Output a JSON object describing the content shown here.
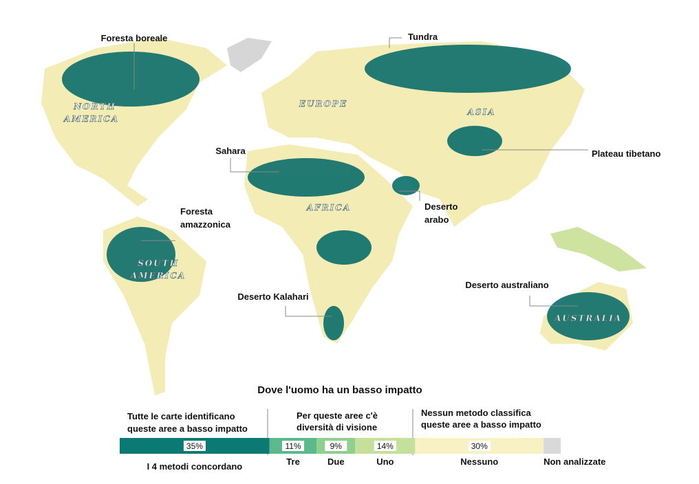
{
  "map": {
    "regions": [
      [
        "NORTH",
        "AMERICA"
      ],
      [
        "EUROPE"
      ],
      [
        "ASIA"
      ],
      [
        "AFRICA"
      ],
      [
        "SOUTH",
        "AMERICA"
      ],
      [
        "AUSTRALIA"
      ]
    ],
    "callouts": [
      [
        "Foresta boreale"
      ],
      [
        "Tundra"
      ],
      [
        "Sahara"
      ],
      [
        "Plateau tibetano"
      ],
      [
        "Foresta",
        "amazzonica"
      ],
      [
        "Deserto",
        "arabo"
      ],
      [
        "Deserto Kalahari"
      ],
      [
        "Deserto australiano"
      ]
    ]
  },
  "legend": {
    "title": "Dove l'uomo ha un basso impatto",
    "groups": [
      [
        "Tutte le carte identificano",
        "queste aree a basso impatto"
      ],
      [
        "Per queste aree c'è",
        "diversità di visione"
      ],
      [
        "Nessun metodo classifica",
        "queste aree a basso impatto"
      ]
    ],
    "segments": [
      {
        "name": "I 4 metodi concordano",
        "value": 35,
        "value_label": "35%",
        "color": "#0b7a75"
      },
      {
        "name": "Tre",
        "value": 11,
        "value_label": "11%",
        "color": "#5bb98c"
      },
      {
        "name": "Due",
        "value": 9,
        "value_label": "9%",
        "color": "#8fd08f"
      },
      {
        "name": "Uno",
        "value": 14,
        "value_label": "14%",
        "color": "#c4e09a"
      },
      {
        "name": "Nessuno",
        "value": 30,
        "value_label": "30%",
        "color": "#f8f1c4"
      },
      {
        "name": "Non analizzate",
        "value": 4,
        "color": "#d9d9d9"
      }
    ]
  }
}
